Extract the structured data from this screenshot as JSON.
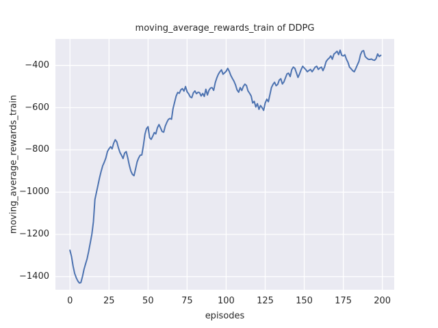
{
  "figure": {
    "title": "moving_average_rewards_train of DDPG",
    "xlabel": "episodes",
    "ylabel": "moving_average_rewards_train"
  },
  "colors": {
    "axes_background": "#eaeaf2",
    "gridline": "#ffffff",
    "line": "#4c72b0",
    "text": "#262626"
  },
  "chart_data": {
    "type": "line",
    "title": "moving_average_rewards_train of DDPG",
    "xlabel": "episodes",
    "ylabel": "moving_average_rewards_train",
    "style": "seaborn-darkgrid",
    "grid": true,
    "legend": false,
    "xlim": [
      -9.3,
      207.6
    ],
    "ylim": [
      -1462,
      -274.8
    ],
    "xticks": {
      "values": [
        0,
        25,
        50,
        75,
        100,
        125,
        150,
        175,
        200
      ],
      "labels": [
        "0",
        "25",
        "50",
        "75",
        "100",
        "125",
        "150",
        "175",
        "200"
      ]
    },
    "yticks": {
      "values": [
        -1400,
        -1200,
        -1000,
        -800,
        -600,
        -400
      ],
      "labels": [
        "−1400",
        "−1200",
        "−1000",
        "−800",
        "−600",
        "−400"
      ]
    },
    "series": [
      {
        "name": "moving_average_rewards_train",
        "color": "#4c72b0",
        "points": [
          [
            0,
            -1275
          ],
          [
            1,
            -1305
          ],
          [
            2,
            -1350
          ],
          [
            3,
            -1385
          ],
          [
            4,
            -1405
          ],
          [
            5,
            -1420
          ],
          [
            6,
            -1430
          ],
          [
            7,
            -1428
          ],
          [
            8,
            -1400
          ],
          [
            9,
            -1365
          ],
          [
            10,
            -1340
          ],
          [
            11,
            -1315
          ],
          [
            12,
            -1280
          ],
          [
            13,
            -1240
          ],
          [
            14,
            -1200
          ],
          [
            15,
            -1140
          ],
          [
            16,
            -1035
          ],
          [
            17,
            -1000
          ],
          [
            18,
            -965
          ],
          [
            19,
            -930
          ],
          [
            20,
            -900
          ],
          [
            21,
            -875
          ],
          [
            22,
            -858
          ],
          [
            23,
            -838
          ],
          [
            24,
            -808
          ],
          [
            25,
            -795
          ],
          [
            26,
            -785
          ],
          [
            27,
            -795
          ],
          [
            28,
            -768
          ],
          [
            29,
            -752
          ],
          [
            30,
            -762
          ],
          [
            31,
            -790
          ],
          [
            32,
            -812
          ],
          [
            33,
            -825
          ],
          [
            34,
            -841
          ],
          [
            35,
            -815
          ],
          [
            36,
            -808
          ],
          [
            37,
            -838
          ],
          [
            38,
            -872
          ],
          [
            39,
            -900
          ],
          [
            40,
            -916
          ],
          [
            41,
            -922
          ],
          [
            42,
            -890
          ],
          [
            43,
            -856
          ],
          [
            44,
            -838
          ],
          [
            45,
            -825
          ],
          [
            46,
            -824
          ],
          [
            47,
            -780
          ],
          [
            48,
            -726
          ],
          [
            49,
            -700
          ],
          [
            50,
            -690
          ],
          [
            51,
            -742
          ],
          [
            52,
            -750
          ],
          [
            53,
            -735
          ],
          [
            54,
            -718
          ],
          [
            55,
            -724
          ],
          [
            56,
            -695
          ],
          [
            57,
            -680
          ],
          [
            58,
            -696
          ],
          [
            59,
            -713
          ],
          [
            60,
            -716
          ],
          [
            61,
            -688
          ],
          [
            62,
            -670
          ],
          [
            63,
            -656
          ],
          [
            64,
            -651
          ],
          [
            65,
            -655
          ],
          [
            66,
            -605
          ],
          [
            67,
            -575
          ],
          [
            68,
            -545
          ],
          [
            69,
            -528
          ],
          [
            70,
            -532
          ],
          [
            71,
            -515
          ],
          [
            72,
            -510
          ],
          [
            73,
            -522
          ],
          [
            74,
            -500
          ],
          [
            75,
            -525
          ],
          [
            76,
            -535
          ],
          [
            77,
            -549
          ],
          [
            78,
            -553
          ],
          [
            79,
            -530
          ],
          [
            80,
            -521
          ],
          [
            81,
            -534
          ],
          [
            82,
            -527
          ],
          [
            83,
            -529
          ],
          [
            84,
            -545
          ],
          [
            85,
            -533
          ],
          [
            86,
            -547
          ],
          [
            87,
            -513
          ],
          [
            88,
            -540
          ],
          [
            89,
            -518
          ],
          [
            90,
            -507
          ],
          [
            91,
            -505
          ],
          [
            92,
            -518
          ],
          [
            93,
            -482
          ],
          [
            94,
            -460
          ],
          [
            95,
            -442
          ],
          [
            96,
            -430
          ],
          [
            97,
            -421
          ],
          [
            98,
            -442
          ],
          [
            99,
            -435
          ],
          [
            100,
            -428
          ],
          [
            101,
            -414
          ],
          [
            102,
            -428
          ],
          [
            103,
            -448
          ],
          [
            104,
            -462
          ],
          [
            105,
            -475
          ],
          [
            106,
            -492
          ],
          [
            107,
            -516
          ],
          [
            108,
            -527
          ],
          [
            109,
            -505
          ],
          [
            110,
            -519
          ],
          [
            111,
            -500
          ],
          [
            112,
            -489
          ],
          [
            113,
            -495
          ],
          [
            114,
            -521
          ],
          [
            115,
            -532
          ],
          [
            116,
            -545
          ],
          [
            117,
            -578
          ],
          [
            118,
            -570
          ],
          [
            119,
            -597
          ],
          [
            120,
            -581
          ],
          [
            121,
            -608
          ],
          [
            122,
            -590
          ],
          [
            123,
            -600
          ],
          [
            124,
            -613
          ],
          [
            125,
            -578
          ],
          [
            126,
            -560
          ],
          [
            127,
            -572
          ],
          [
            128,
            -540
          ],
          [
            129,
            -505
          ],
          [
            130,
            -490
          ],
          [
            131,
            -480
          ],
          [
            132,
            -496
          ],
          [
            133,
            -490
          ],
          [
            134,
            -470
          ],
          [
            135,
            -463
          ],
          [
            136,
            -488
          ],
          [
            137,
            -478
          ],
          [
            138,
            -458
          ],
          [
            139,
            -440
          ],
          [
            140,
            -437
          ],
          [
            141,
            -453
          ],
          [
            142,
            -420
          ],
          [
            143,
            -408
          ],
          [
            144,
            -414
          ],
          [
            145,
            -435
          ],
          [
            146,
            -457
          ],
          [
            147,
            -440
          ],
          [
            148,
            -420
          ],
          [
            149,
            -404
          ],
          [
            150,
            -412
          ],
          [
            151,
            -420
          ],
          [
            152,
            -430
          ],
          [
            153,
            -424
          ],
          [
            154,
            -419
          ],
          [
            155,
            -430
          ],
          [
            156,
            -420
          ],
          [
            157,
            -408
          ],
          [
            158,
            -404
          ],
          [
            159,
            -419
          ],
          [
            160,
            -412
          ],
          [
            161,
            -408
          ],
          [
            162,
            -425
          ],
          [
            163,
            -408
          ],
          [
            164,
            -382
          ],
          [
            165,
            -372
          ],
          [
            166,
            -365
          ],
          [
            167,
            -355
          ],
          [
            168,
            -371
          ],
          [
            169,
            -347
          ],
          [
            170,
            -340
          ],
          [
            171,
            -333
          ],
          [
            172,
            -349
          ],
          [
            173,
            -328
          ],
          [
            174,
            -352
          ],
          [
            175,
            -355
          ],
          [
            176,
            -350
          ],
          [
            177,
            -371
          ],
          [
            178,
            -385
          ],
          [
            179,
            -408
          ],
          [
            180,
            -416
          ],
          [
            181,
            -425
          ],
          [
            182,
            -430
          ],
          [
            183,
            -415
          ],
          [
            184,
            -398
          ],
          [
            185,
            -382
          ],
          [
            186,
            -350
          ],
          [
            187,
            -333
          ],
          [
            188,
            -330
          ],
          [
            189,
            -358
          ],
          [
            190,
            -365
          ],
          [
            191,
            -371
          ],
          [
            192,
            -372
          ],
          [
            193,
            -370
          ],
          [
            194,
            -374
          ],
          [
            195,
            -376
          ],
          [
            196,
            -368
          ],
          [
            197,
            -346
          ],
          [
            198,
            -358
          ],
          [
            199,
            -352
          ]
        ]
      }
    ]
  }
}
